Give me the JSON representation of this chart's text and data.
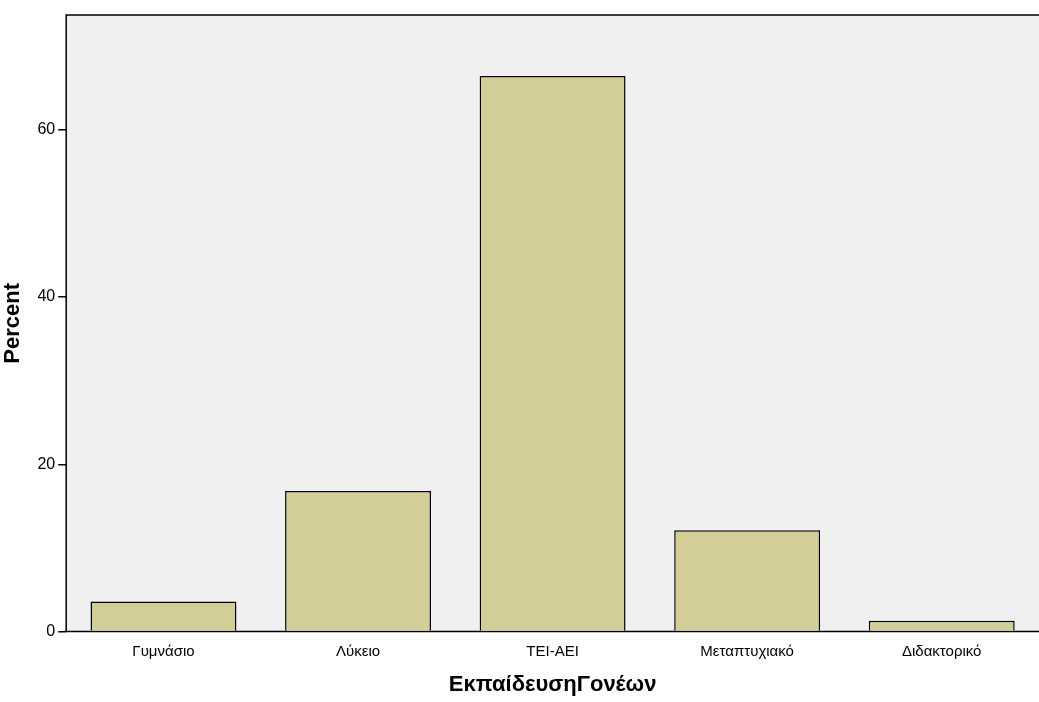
{
  "chart_data": {
    "type": "bar",
    "xlabel": "ΕκπαίδευσηΓονέων",
    "ylabel": "Percent",
    "categories": [
      "Γυμνάσιο",
      "Λύκειο",
      "ΤΕΙ-ΑΕΙ",
      "Μεταπτυχιακό",
      "Διδακτορικό"
    ],
    "values": [
      3.6,
      16.8,
      66.4,
      12.1,
      1.3
    ],
    "color": "#d3ce97",
    "ylim": [
      0,
      73.7
    ],
    "yticks": [
      0,
      20,
      40,
      60
    ],
    "grid": false,
    "legend": false
  }
}
